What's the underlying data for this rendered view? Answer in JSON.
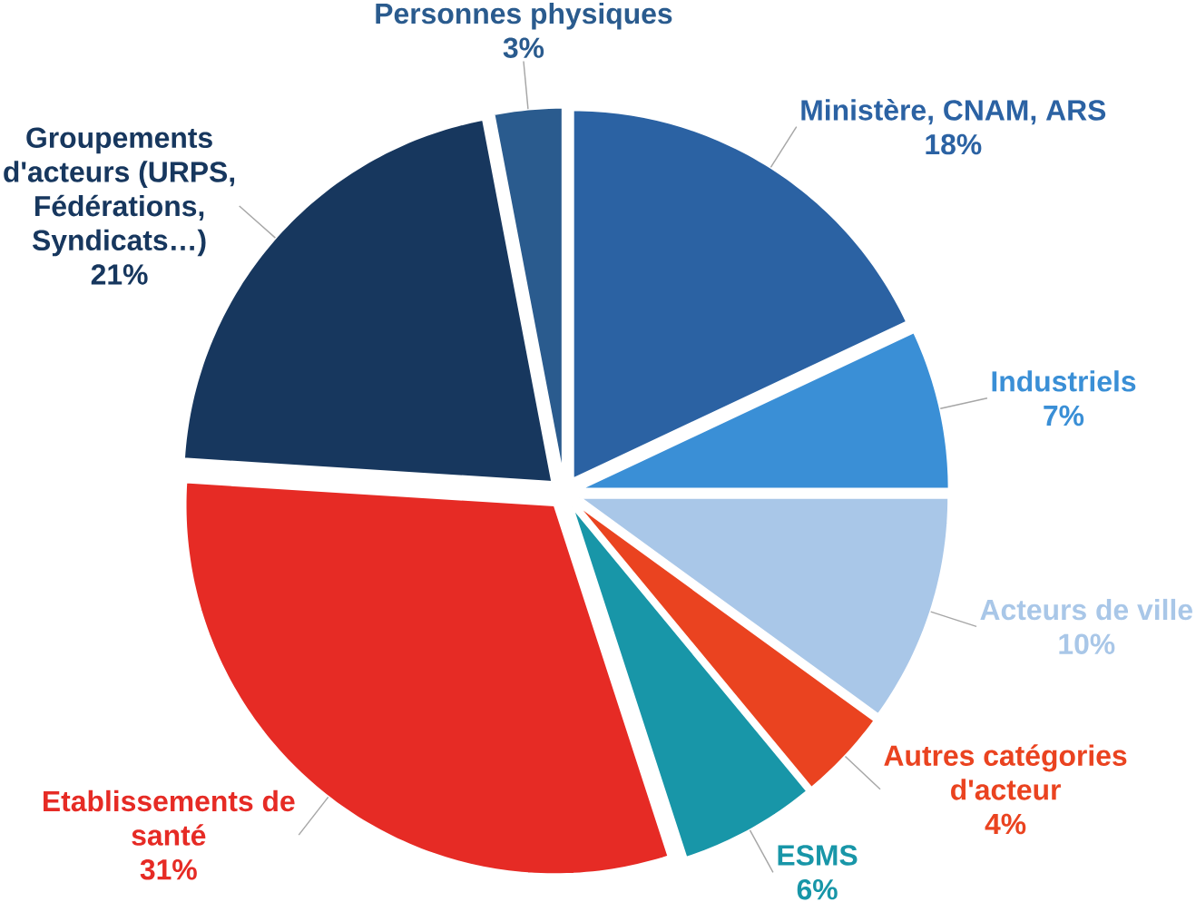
{
  "chart_data": {
    "type": "pie",
    "categories": [
      "Ministère, CNAM, ARS",
      "Industriels",
      "Acteurs de ville",
      "Autres catégories d'acteur",
      "ESMS",
      "Etablissements de santé",
      "Groupements d'acteurs (URPS, Fédérations, Syndicats…)",
      "Personnes physiques"
    ],
    "values": [
      18,
      7,
      10,
      4,
      6,
      31,
      21,
      3
    ],
    "value_labels": [
      "18%",
      "7%",
      "10%",
      "4%",
      "6%",
      "31%",
      "21%",
      "3%"
    ],
    "colors": [
      "#2b62a3",
      "#3a8fd6",
      "#a9c7e8",
      "#ea4320",
      "#1896a8",
      "#e62b25",
      "#17375e",
      "#2a5b8e"
    ]
  }
}
